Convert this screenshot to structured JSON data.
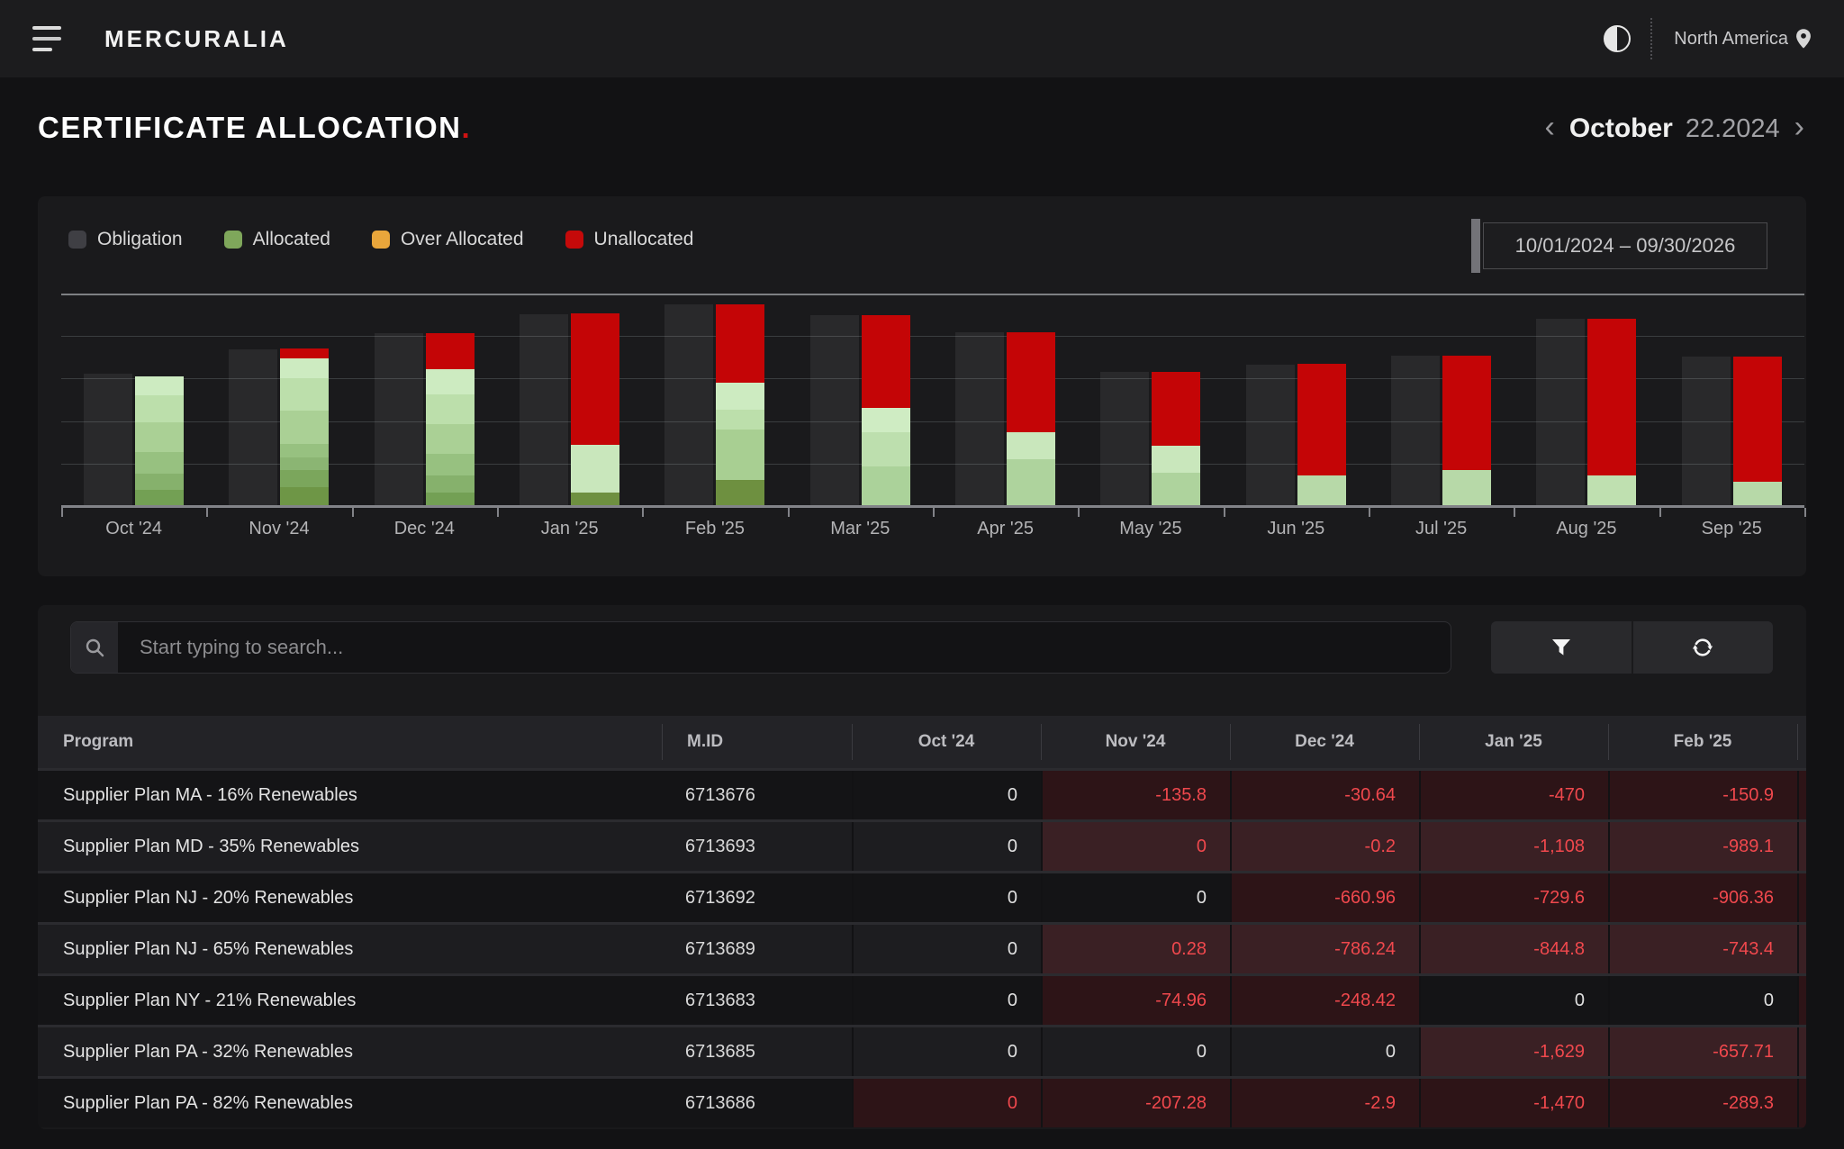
{
  "header": {
    "brand": "MERCURALIA",
    "region": "North America",
    "icons": {
      "menu": "hamburger-icon",
      "theme": "half-circle-toggle-icon",
      "location": "location-pin-icon"
    }
  },
  "page": {
    "title": "CERTIFICATE ALLOCATION",
    "title_accent": ".",
    "month_nav": {
      "prev": "‹",
      "month": "October",
      "date": "22.2024",
      "next": "›"
    }
  },
  "chart": {
    "date_range": "10/01/2024 – 09/30/2026",
    "legend": [
      {
        "label": "Obligation",
        "color": "#3f3f44"
      },
      {
        "label": "Allocated",
        "color": "#7fa75b"
      },
      {
        "label": "Over Allocated",
        "color": "#e9a63b"
      },
      {
        "label": "Unallocated",
        "color": "#c50a0a"
      }
    ]
  },
  "chart_data": {
    "type": "bar",
    "title": "",
    "xlabel": "",
    "ylabel": "",
    "ylim": [
      0,
      100
    ],
    "grid": true,
    "legend_position": "top-left",
    "unit": "percent of plot height (no y-axis labels shown in UI)",
    "colors": {
      "obligation": "rgba(255,255,255,0.065)",
      "unallocated": "#c40506"
    },
    "categories": [
      "Oct '24",
      "Nov '24",
      "Dec '24",
      "Jan '25",
      "Feb '25",
      "Mar '25",
      "Apr '25",
      "May '25",
      "Jun '25",
      "Jul '25",
      "Aug '25",
      "Sep '25"
    ],
    "months": [
      {
        "label": "Oct '24",
        "obligation": 62.3,
        "unallocated": 0,
        "allocated_segments": [
          {
            "h": 9.2,
            "color": "#cdebc1"
          },
          {
            "h": 12.7,
            "color": "#bcdfab"
          },
          {
            "h": 13.7,
            "color": "#aad095"
          },
          {
            "h": 10.2,
            "color": "#97c180"
          },
          {
            "h": 7.8,
            "color": "#86b16c"
          },
          {
            "h": 7.6,
            "color": "#73a054"
          }
        ]
      },
      {
        "label": "Nov '24",
        "obligation": 73.7,
        "unallocated": 4.7,
        "allocated_segments": [
          {
            "h": 9.3,
            "color": "#cdebc1"
          },
          {
            "h": 15.3,
            "color": "#bcdfab"
          },
          {
            "h": 15.7,
            "color": "#aad095"
          },
          {
            "h": 6.4,
            "color": "#97c180"
          },
          {
            "h": 5.9,
            "color": "#8bb573"
          },
          {
            "h": 8.1,
            "color": "#7ba65c"
          },
          {
            "h": 8.9,
            "color": "#6e9646"
          }
        ]
      },
      {
        "label": "Dec '24",
        "obligation": 81.4,
        "unallocated": 16.9,
        "allocated_segments": [
          {
            "h": 11.9,
            "color": "#cdebc1"
          },
          {
            "h": 14,
            "color": "#bcdfab"
          },
          {
            "h": 14,
            "color": "#aad095"
          },
          {
            "h": 10.2,
            "color": "#97c180"
          },
          {
            "h": 8,
            "color": "#86b16c"
          },
          {
            "h": 6.3,
            "color": "#73a054"
          }
        ]
      },
      {
        "label": "Jan '25",
        "obligation": 90.3,
        "unallocated": 61.9,
        "allocated_segments": [
          {
            "h": 22.5,
            "color": "#c9e7bc"
          },
          {
            "h": 6.4,
            "color": "#6e9040"
          }
        ]
      },
      {
        "label": "Feb '25",
        "obligation": 94.9,
        "unallocated": 36.9,
        "allocated_segments": [
          {
            "h": 12.7,
            "color": "#cdebc1"
          },
          {
            "h": 9.3,
            "color": "#bcdfab"
          },
          {
            "h": 23.7,
            "color": "#a8cf92"
          },
          {
            "h": 12.3,
            "color": "#6e9040"
          }
        ]
      },
      {
        "label": "Mar '25",
        "obligation": 89.8,
        "unallocated": 43.6,
        "allocated_segments": [
          {
            "h": 11.4,
            "color": "#cfecc3"
          },
          {
            "h": 16.1,
            "color": "#bddfae"
          },
          {
            "h": 18.6,
            "color": "#abd29a"
          }
        ]
      },
      {
        "label": "Apr '25",
        "obligation": 81.8,
        "unallocated": 47,
        "allocated_segments": [
          {
            "h": 12.7,
            "color": "#c9e7bc"
          },
          {
            "h": 22,
            "color": "#aed39d"
          }
        ]
      },
      {
        "label": "May '25",
        "obligation": 63.1,
        "unallocated": 34.7,
        "allocated_segments": [
          {
            "h": 12.7,
            "color": "#c9e7bc"
          },
          {
            "h": 15.7,
            "color": "#aed39d"
          }
        ]
      },
      {
        "label": "Jun '25",
        "obligation": 66.5,
        "unallocated": 52.5,
        "allocated_segments": [
          {
            "h": 14.4,
            "color": "#b7d9a8"
          }
        ]
      },
      {
        "label": "Jul '25",
        "obligation": 70.8,
        "unallocated": 53.8,
        "allocated_segments": [
          {
            "h": 16.9,
            "color": "#b7d9a8"
          }
        ]
      },
      {
        "label": "Aug '25",
        "obligation": 88.1,
        "unallocated": 73.7,
        "allocated_segments": [
          {
            "h": 14.4,
            "color": "#bfe0b0"
          }
        ]
      },
      {
        "label": "Sep '25",
        "obligation": 70.3,
        "unallocated": 58.9,
        "allocated_segments": [
          {
            "h": 11.4,
            "color": "#b7d9a8"
          }
        ]
      }
    ]
  },
  "search": {
    "placeholder": "Start typing to search...",
    "icons": {
      "filter": "funnel-icon",
      "refresh": "refresh-icon",
      "search": "magnifier-icon"
    }
  },
  "table": {
    "columns": [
      "Program",
      "M.ID",
      "Oct '24",
      "Nov '24",
      "Dec '24",
      "Jan '25",
      "Feb '25"
    ],
    "rows": [
      {
        "program": "Supplier Plan MA - 16% Renewables",
        "mid": "6713676",
        "values": [
          {
            "text": "0",
            "alert": false
          },
          {
            "text": "-135.8",
            "alert": true
          },
          {
            "text": "-30.64",
            "alert": true
          },
          {
            "text": "-470",
            "alert": true
          },
          {
            "text": "-150.9",
            "alert": true
          }
        ]
      },
      {
        "program": "Supplier Plan MD - 35% Renewables",
        "mid": "6713693",
        "values": [
          {
            "text": "0",
            "alert": false
          },
          {
            "text": "0",
            "alert": true
          },
          {
            "text": "-0.2",
            "alert": true
          },
          {
            "text": "-1,108",
            "alert": true
          },
          {
            "text": "-989.1",
            "alert": true
          }
        ]
      },
      {
        "program": "Supplier Plan NJ - 20% Renewables",
        "mid": "6713692",
        "values": [
          {
            "text": "0",
            "alert": false
          },
          {
            "text": "0",
            "alert": false
          },
          {
            "text": "-660.96",
            "alert": true
          },
          {
            "text": "-729.6",
            "alert": true
          },
          {
            "text": "-906.36",
            "alert": true
          }
        ]
      },
      {
        "program": "Supplier Plan NJ - 65% Renewables",
        "mid": "6713689",
        "values": [
          {
            "text": "0",
            "alert": false
          },
          {
            "text": "0.28",
            "alert": true
          },
          {
            "text": "-786.24",
            "alert": true
          },
          {
            "text": "-844.8",
            "alert": true
          },
          {
            "text": "-743.4",
            "alert": true
          }
        ]
      },
      {
        "program": "Supplier Plan NY - 21% Renewables",
        "mid": "6713683",
        "values": [
          {
            "text": "0",
            "alert": false
          },
          {
            "text": "-74.96",
            "alert": true
          },
          {
            "text": "-248.42",
            "alert": true
          },
          {
            "text": "0",
            "alert": false
          },
          {
            "text": "0",
            "alert": false
          }
        ]
      },
      {
        "program": "Supplier Plan PA - 32% Renewables",
        "mid": "6713685",
        "values": [
          {
            "text": "0",
            "alert": false
          },
          {
            "text": "0",
            "alert": false
          },
          {
            "text": "0",
            "alert": false
          },
          {
            "text": "-1,629",
            "alert": true
          },
          {
            "text": "-657.71",
            "alert": true
          }
        ]
      },
      {
        "program": "Supplier Plan PA - 82% Renewables",
        "mid": "6713686",
        "values": [
          {
            "text": "0",
            "alert": true
          },
          {
            "text": "-207.28",
            "alert": true
          },
          {
            "text": "-2.9",
            "alert": true
          },
          {
            "text": "-1,470",
            "alert": true
          },
          {
            "text": "-289.3",
            "alert": true
          }
        ]
      }
    ]
  }
}
